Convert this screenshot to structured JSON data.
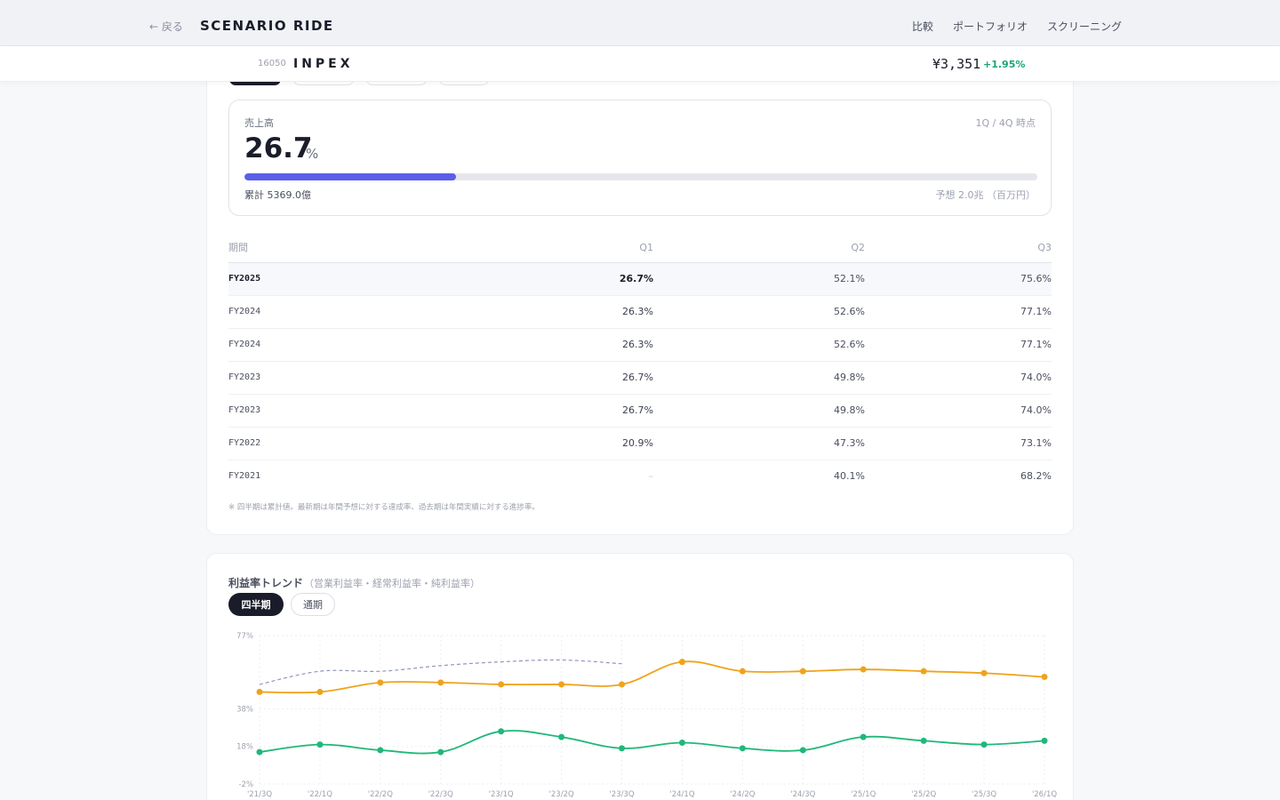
{
  "nav": {
    "back": "← 戻る",
    "brand": "SCENARIO RIDE",
    "links": [
      "比較",
      "ポートフォリオ",
      "スクリーニング"
    ]
  },
  "ticker": {
    "code": "16050",
    "name": "INPEX",
    "price": "¥3,351",
    "change": "+1.95%"
  },
  "progress": {
    "label": "売上高",
    "period": "1Q / 4Q 時点",
    "value": "26.7",
    "unit": "%",
    "fraction": 0.267,
    "cumulative": "累計 5369.0億",
    "forecast": "予想 2.0兆 （百万円）"
  },
  "table": {
    "headers": [
      "期間",
      "Q1",
      "Q2",
      "Q3"
    ],
    "rows": [
      {
        "period": "FY2025",
        "q1": "26.7%",
        "q2": "52.1%",
        "q3": "75.6%"
      },
      {
        "period": "FY2024",
        "q1": "26.3%",
        "q2": "52.6%",
        "q3": "77.1%"
      },
      {
        "period": "FY2024",
        "q1": "26.3%",
        "q2": "52.6%",
        "q3": "77.1%"
      },
      {
        "period": "FY2023",
        "q1": "26.7%",
        "q2": "49.8%",
        "q3": "74.0%"
      },
      {
        "period": "FY2023",
        "q1": "26.7%",
        "q2": "49.8%",
        "q3": "74.0%"
      },
      {
        "period": "FY2022",
        "q1": "20.9%",
        "q2": "47.3%",
        "q3": "73.1%"
      },
      {
        "period": "FY2021",
        "q1": "–",
        "q2": "40.1%",
        "q3": "68.2%"
      }
    ],
    "footnote": "※ 四半期は累計値。最新期は年間予想に対する達成率、過去期は年間実績に対する進捗率。"
  },
  "trend": {
    "title": "利益率トレンド",
    "subtitle": "（営業利益率・経常利益率・純利益率）",
    "tabs": [
      "四半期",
      "通期"
    ]
  },
  "colors": {
    "accent": "#5b5fe8",
    "orange": "#f0a21b",
    "green": "#1fb87a",
    "dashed": "#8f97b8",
    "up": "#17a673"
  },
  "chart_data": {
    "type": "line",
    "categories": [
      "'21/3Q",
      "'22/1Q",
      "'22/2Q",
      "'22/3Q",
      "'23/1Q",
      "'23/2Q",
      "'23/3Q",
      "'24/1Q",
      "'24/2Q",
      "'24/3Q",
      "'25/1Q",
      "'25/2Q",
      "'25/3Q",
      "'26/1Q"
    ],
    "yticks": [
      "77%",
      "38%",
      "18%",
      "-2%"
    ],
    "ylim": [
      -2,
      77
    ],
    "grid": true,
    "series": [
      {
        "style": "dashed",
        "color": "#8f97b8",
        "values": [
          51,
          58,
          58,
          61,
          63,
          64,
          62,
          null,
          null,
          null,
          null,
          null,
          null,
          null
        ]
      },
      {
        "style": "solid",
        "color": "#f0a21b",
        "values": [
          47,
          47,
          52,
          52,
          51,
          51,
          51,
          63,
          58,
          58,
          59,
          58,
          57,
          55
        ]
      },
      {
        "style": "solid",
        "color": "#1fb87a",
        "values": [
          15,
          19,
          16,
          15,
          26,
          23,
          17,
          20,
          17,
          16,
          23,
          21,
          19,
          21
        ]
      }
    ]
  }
}
